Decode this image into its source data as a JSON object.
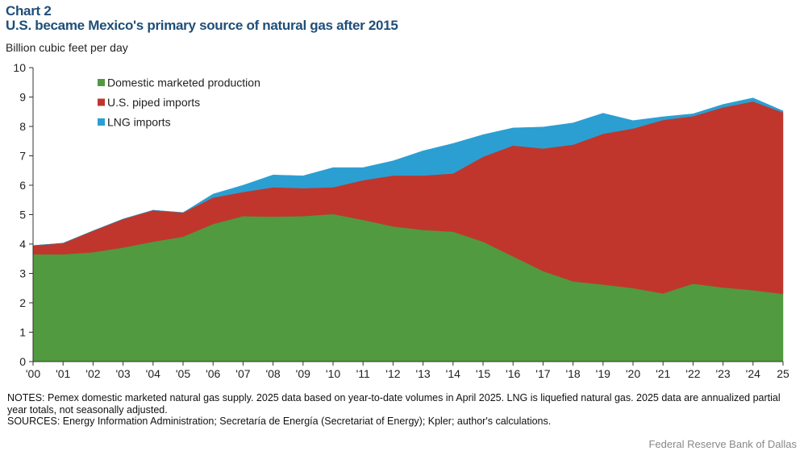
{
  "header": {
    "chart_number": "Chart 2",
    "title": "U.S. became Mexico's primary source of natural gas after 2015"
  },
  "chart_data": {
    "type": "area",
    "stacked": true,
    "title": "U.S. became Mexico's primary source of natural gas after 2015",
    "ylabel": "Billion cubic feet per day",
    "xlabel": "",
    "ylim": [
      0,
      10
    ],
    "yticks": [
      0,
      1,
      2,
      3,
      4,
      5,
      6,
      7,
      8,
      9,
      10
    ],
    "categories": [
      "'00",
      "'01",
      "'02",
      "'03",
      "'04",
      "'05",
      "'06",
      "'07",
      "'08",
      "'09",
      "'10",
      "'11",
      "'12",
      "'13",
      "'14",
      "'15",
      "'16",
      "'17",
      "'18",
      "'19",
      "'20",
      "'21",
      "'22",
      "'23",
      "'24",
      "25"
    ],
    "legend_position": "top-left",
    "grid": false,
    "series": [
      {
        "name": "Domestic marketed production",
        "color": "#519a3f",
        "values": [
          3.65,
          3.65,
          3.72,
          3.88,
          4.08,
          4.25,
          4.68,
          4.95,
          4.93,
          4.95,
          5.02,
          4.82,
          4.6,
          4.48,
          4.42,
          4.08,
          3.58,
          3.08,
          2.73,
          2.62,
          2.5,
          2.32,
          2.65,
          2.52,
          2.43,
          2.3
        ]
      },
      {
        "name": "U.S. piped imports",
        "color": "#c0362c",
        "values": [
          0.3,
          0.38,
          0.73,
          0.97,
          1.07,
          0.82,
          0.9,
          0.82,
          1.0,
          0.95,
          0.91,
          1.35,
          1.73,
          1.85,
          1.98,
          2.89,
          3.77,
          4.17,
          4.65,
          5.13,
          5.43,
          5.9,
          5.7,
          6.13,
          6.42,
          6.18
        ]
      },
      {
        "name": "LNG imports",
        "color": "#2b9fd2",
        "values": [
          0,
          0,
          0,
          0,
          0,
          0,
          0.12,
          0.23,
          0.42,
          0.42,
          0.67,
          0.43,
          0.5,
          0.84,
          1.02,
          0.75,
          0.6,
          0.73,
          0.74,
          0.7,
          0.27,
          0.11,
          0.08,
          0.1,
          0.12,
          0.05
        ]
      }
    ]
  },
  "footer": {
    "notes": "NOTES: Pemex domestic marketed natural gas supply. 2025 data based on year-to-date volumes in April 2025. LNG is liquefied natural gas. 2025 data are annualized partial year totals, not seasonally adjusted.",
    "sources": "SOURCES: Energy Information Administration; Secretaría de Energía (Secretariat of Energy); Kpler; author's calculations.",
    "credit": "Federal Reserve Bank of Dallas"
  }
}
